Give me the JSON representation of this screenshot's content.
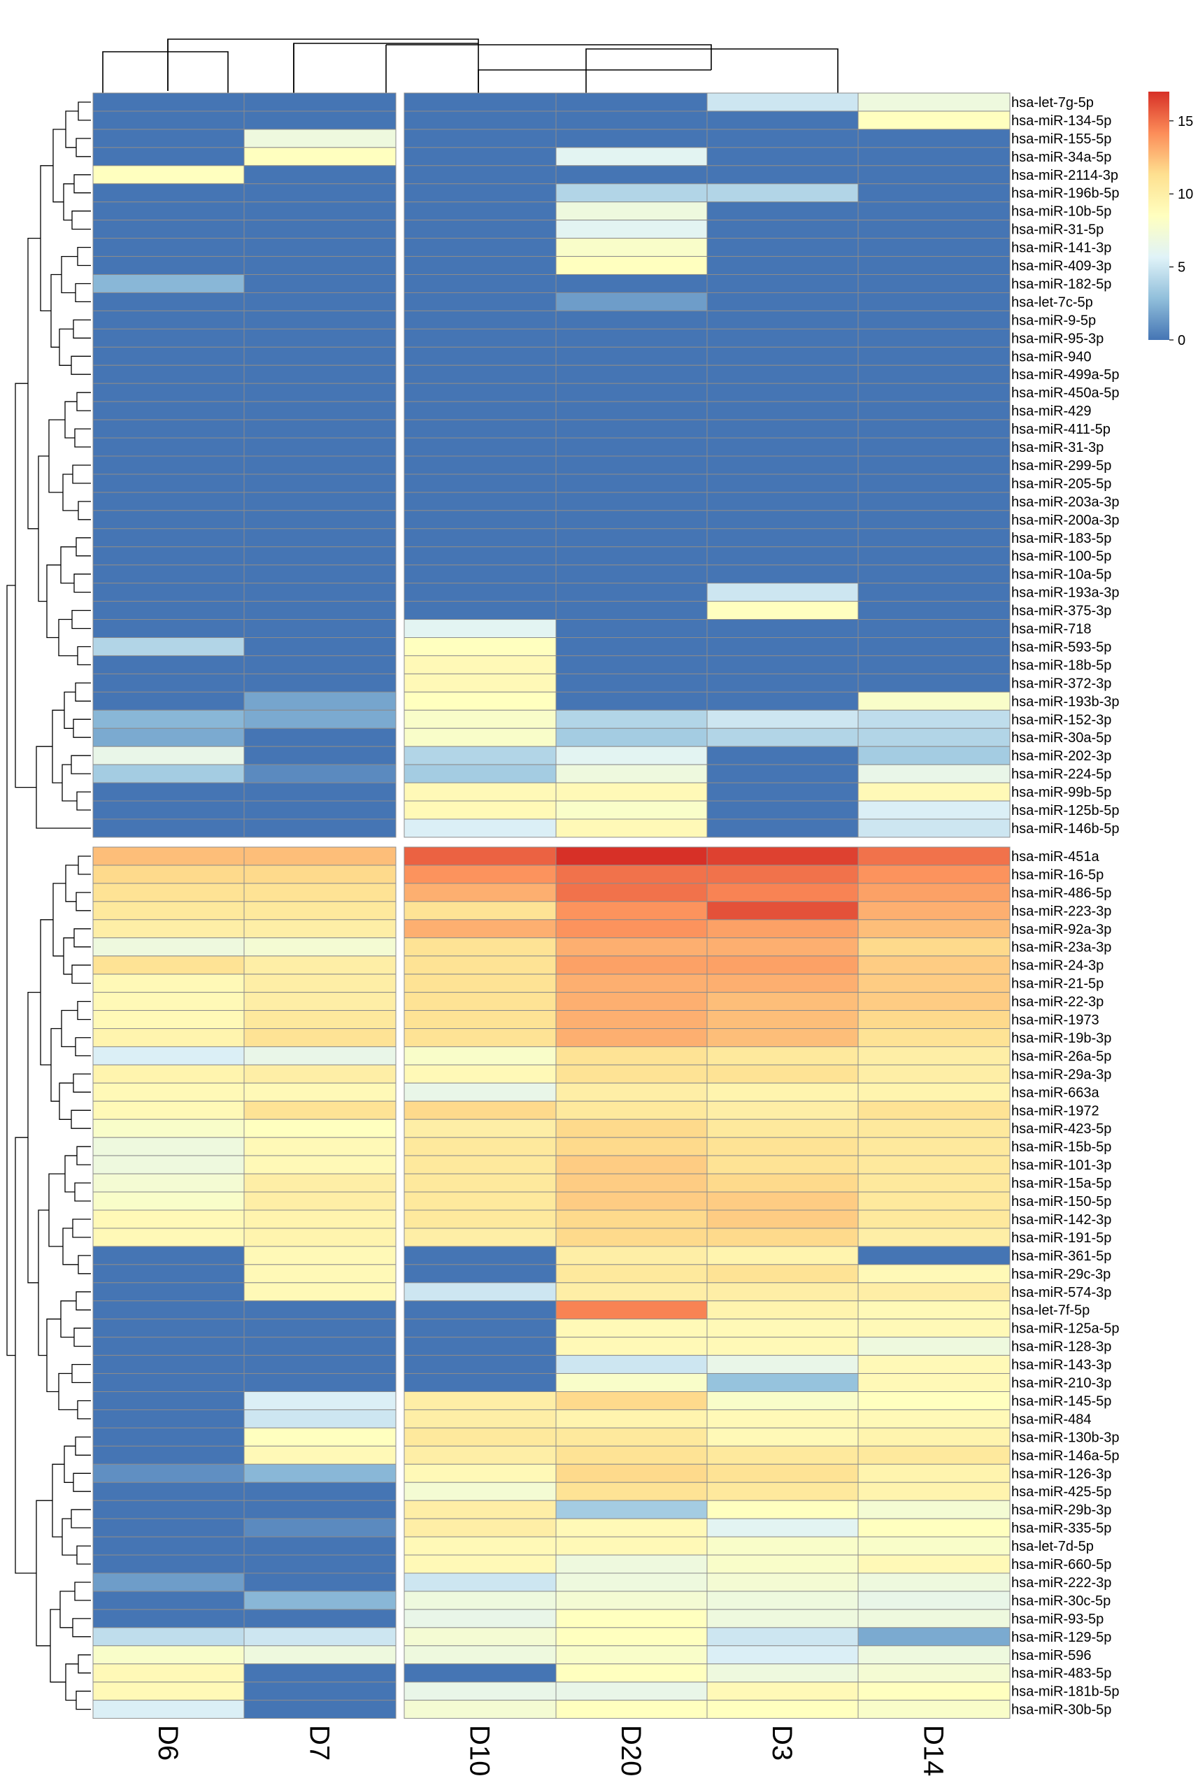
{
  "chart_data": {
    "type": "heatmap",
    "title": "",
    "columns": [
      "D6",
      "D7",
      "D10",
      "D20",
      "D3",
      "D14"
    ],
    "color_scale": {
      "min": 0,
      "max": 17,
      "stops": [
        {
          "value": 0,
          "color": "#4575b4"
        },
        {
          "value": 2.8,
          "color": "#91bfdb"
        },
        {
          "value": 5.7,
          "color": "#e0f3f8"
        },
        {
          "value": 8.5,
          "color": "#ffffbf"
        },
        {
          "value": 11.3,
          "color": "#fee090"
        },
        {
          "value": 14.2,
          "color": "#fc8d59"
        },
        {
          "value": 17,
          "color": "#d73027"
        }
      ]
    },
    "legend": {
      "position": "top-right",
      "ticks": [
        0,
        5,
        10,
        15
      ]
    },
    "row_clusters": [
      {
        "name": "upper",
        "rows": [
          {
            "label": "hsa-let-7g-5p",
            "values": [
              0,
              0,
              0,
              0,
              5,
              7
            ]
          },
          {
            "label": "hsa-miR-134-5p",
            "values": [
              0,
              0,
              0,
              0,
              0,
              8.5
            ]
          },
          {
            "label": "hsa-miR-155-5p",
            "values": [
              0,
              7,
              0,
              0,
              0,
              0
            ]
          },
          {
            "label": "hsa-miR-34a-5p",
            "values": [
              0,
              8.5,
              0,
              6,
              0,
              0
            ]
          },
          {
            "label": "hsa-miR-2114-3p",
            "values": [
              8.5,
              0,
              0,
              0,
              0,
              0
            ]
          },
          {
            "label": "hsa-miR-196b-5p",
            "values": [
              0,
              0,
              0,
              4,
              4,
              0
            ]
          },
          {
            "label": "hsa-miR-10b-5p",
            "values": [
              0,
              0,
              0,
              7,
              0,
              0
            ]
          },
          {
            "label": "hsa-miR-31-5p",
            "values": [
              0,
              0,
              0,
              6,
              0,
              0
            ]
          },
          {
            "label": "hsa-miR-141-3p",
            "values": [
              0,
              0,
              0,
              8,
              0,
              0
            ]
          },
          {
            "label": "hsa-miR-409-3p",
            "values": [
              0,
              0,
              0,
              8.5,
              0,
              0
            ]
          },
          {
            "label": "hsa-miR-182-5p",
            "values": [
              2.5,
              0,
              0,
              0,
              0,
              0
            ]
          },
          {
            "label": "hsa-let-7c-5p",
            "values": [
              0,
              0,
              0,
              1.5,
              0,
              0
            ]
          },
          {
            "label": "hsa-miR-9-5p",
            "values": [
              0,
              0,
              0,
              0,
              0,
              0
            ]
          },
          {
            "label": "hsa-miR-95-3p",
            "values": [
              0,
              0,
              0,
              0,
              0,
              0
            ]
          },
          {
            "label": "hsa-miR-940",
            "values": [
              0,
              0,
              0,
              0,
              0,
              0
            ]
          },
          {
            "label": "hsa-miR-499a-5p",
            "values": [
              0,
              0,
              0,
              0,
              0,
              0
            ]
          },
          {
            "label": "hsa-miR-450a-5p",
            "values": [
              0,
              0,
              0,
              0,
              0,
              0
            ]
          },
          {
            "label": "hsa-miR-429",
            "values": [
              0,
              0,
              0,
              0,
              0,
              0
            ]
          },
          {
            "label": "hsa-miR-411-5p",
            "values": [
              0,
              0,
              0,
              0,
              0,
              0
            ]
          },
          {
            "label": "hsa-miR-31-3p",
            "values": [
              0,
              0,
              0,
              0,
              0,
              0
            ]
          },
          {
            "label": "hsa-miR-299-5p",
            "values": [
              0,
              0,
              0,
              0,
              0,
              0
            ]
          },
          {
            "label": "hsa-miR-205-5p",
            "values": [
              0,
              0,
              0,
              0,
              0,
              0
            ]
          },
          {
            "label": "hsa-miR-203a-3p",
            "values": [
              0,
              0,
              0,
              0,
              0,
              0
            ]
          },
          {
            "label": "hsa-miR-200a-3p",
            "values": [
              0,
              0,
              0,
              0,
              0,
              0
            ]
          },
          {
            "label": "hsa-miR-183-5p",
            "values": [
              0,
              0,
              0,
              0,
              0,
              0
            ]
          },
          {
            "label": "hsa-miR-100-5p",
            "values": [
              0,
              0,
              0,
              0,
              0,
              0
            ]
          },
          {
            "label": "hsa-miR-10a-5p",
            "values": [
              0,
              0,
              0,
              0,
              0,
              0
            ]
          },
          {
            "label": "hsa-miR-193a-3p",
            "values": [
              0,
              0,
              0,
              0,
              5,
              0
            ]
          },
          {
            "label": "hsa-miR-375-3p",
            "values": [
              0,
              0,
              0,
              0,
              8.5,
              0
            ]
          },
          {
            "label": "hsa-miR-718",
            "values": [
              0,
              0,
              6,
              0,
              0,
              0
            ]
          },
          {
            "label": "hsa-miR-593-5p",
            "values": [
              4,
              0,
              8.5,
              0,
              0,
              0
            ]
          },
          {
            "label": "hsa-miR-18b-5p",
            "values": [
              0,
              0,
              9,
              0,
              0,
              0
            ]
          },
          {
            "label": "hsa-miR-372-3p",
            "values": [
              0,
              0,
              9,
              0,
              0,
              0
            ]
          },
          {
            "label": "hsa-miR-193b-3p",
            "values": [
              0,
              1.8,
              8.5,
              0,
              0,
              8
            ]
          },
          {
            "label": "hsa-miR-152-3p",
            "values": [
              2.5,
              2,
              8,
              4,
              5,
              4.5
            ]
          },
          {
            "label": "hsa-miR-30a-5p",
            "values": [
              2,
              0,
              8,
              3.5,
              4,
              4
            ]
          },
          {
            "label": "hsa-miR-202-3p",
            "values": [
              6.5,
              0,
              4,
              6,
              0,
              3.5
            ]
          },
          {
            "label": "hsa-miR-224-5p",
            "values": [
              3.5,
              0.8,
              3.5,
              7,
              0,
              6.5
            ]
          },
          {
            "label": "hsa-miR-99b-5p",
            "values": [
              0,
              0,
              9,
              9,
              0,
              9
            ]
          },
          {
            "label": "hsa-miR-125b-5p",
            "values": [
              0,
              0,
              9,
              8,
              0,
              5.5
            ]
          },
          {
            "label": "hsa-miR-146b-5p",
            "values": [
              0,
              0,
              5.5,
              9,
              0,
              5
            ]
          }
        ]
      },
      {
        "name": "lower",
        "rows": [
          {
            "label": "hsa-miR-451a",
            "values": [
              12.5,
              12.5,
              15.5,
              17,
              16.5,
              15
            ]
          },
          {
            "label": "hsa-miR-16-5p",
            "values": [
              11.5,
              11.5,
              14,
              15,
              15,
              14
            ]
          },
          {
            "label": "hsa-miR-486-5p",
            "values": [
              11,
              11,
              13,
              15,
              14.5,
              13.5
            ]
          },
          {
            "label": "hsa-miR-223-3p",
            "values": [
              10.5,
              10.5,
              11,
              14,
              16,
              13
            ]
          },
          {
            "label": "hsa-miR-92a-3p",
            "values": [
              10,
              10,
              13,
              14,
              13.5,
              12.5
            ]
          },
          {
            "label": "hsa-miR-23a-3p",
            "values": [
              7,
              7.5,
              11,
              13,
              13,
              11.5
            ]
          },
          {
            "label": "hsa-miR-24-3p",
            "values": [
              11,
              10,
              11,
              13.5,
              13.5,
              12
            ]
          },
          {
            "label": "hsa-miR-21-5p",
            "values": [
              9,
              10,
              11,
              13,
              13,
              12
            ]
          },
          {
            "label": "hsa-miR-22-3p",
            "values": [
              9,
              10,
              11,
              13,
              12.5,
              12
            ]
          },
          {
            "label": "hsa-miR-1973",
            "values": [
              9,
              10.5,
              11,
              13,
              12.5,
              11.5
            ]
          },
          {
            "label": "hsa-miR-19b-3p",
            "values": [
              9.5,
              11,
              11,
              13,
              12.5,
              11
            ]
          },
          {
            "label": "hsa-miR-26a-5p",
            "values": [
              5.5,
              6.5,
              8,
              11,
              10.5,
              10
            ]
          },
          {
            "label": "hsa-miR-29a-3p",
            "values": [
              9.5,
              10,
              9,
              11,
              11,
              10
            ]
          },
          {
            "label": "hsa-miR-663a",
            "values": [
              9,
              9,
              6.5,
              10,
              9.5,
              9.5
            ]
          },
          {
            "label": "hsa-miR-1972",
            "values": [
              9,
              11,
              11.5,
              10.5,
              10,
              11
            ]
          },
          {
            "label": "hsa-miR-423-5p",
            "values": [
              8,
              8.5,
              10,
              11.5,
              10.5,
              10.5
            ]
          },
          {
            "label": "hsa-miR-15b-5p",
            "values": [
              7,
              9,
              10.5,
              11.5,
              11,
              10.5
            ]
          },
          {
            "label": "hsa-miR-101-3p",
            "values": [
              7,
              9,
              10.5,
              12,
              11,
              10.5
            ]
          },
          {
            "label": "hsa-miR-15a-5p",
            "values": [
              7.5,
              10,
              10.5,
              12,
              11.5,
              10.5
            ]
          },
          {
            "label": "hsa-miR-150-5p",
            "values": [
              8,
              10,
              10.5,
              12,
              12,
              10.5
            ]
          },
          {
            "label": "hsa-miR-142-3p",
            "values": [
              9,
              9.5,
              10.5,
              11.5,
              12,
              10.5
            ]
          },
          {
            "label": "hsa-miR-191-5p",
            "values": [
              9,
              9.5,
              10,
              11.5,
              11.5,
              10
            ]
          },
          {
            "label": "hsa-miR-361-5p",
            "values": [
              0,
              9,
              0,
              10,
              9.5,
              0
            ]
          },
          {
            "label": "hsa-miR-29c-3p",
            "values": [
              0,
              9,
              0,
              10.5,
              11,
              9
            ]
          },
          {
            "label": "hsa-miR-574-3p",
            "values": [
              0,
              9,
              5,
              10,
              10,
              10
            ]
          },
          {
            "label": "hsa-let-7f-5p",
            "values": [
              0,
              0,
              0,
              14.5,
              9.5,
              9
            ]
          },
          {
            "label": "hsa-miR-125a-5p",
            "values": [
              0,
              0,
              0,
              9,
              9,
              9
            ]
          },
          {
            "label": "hsa-miR-128-3p",
            "values": [
              0,
              0,
              0,
              9,
              9,
              7
            ]
          },
          {
            "label": "hsa-miR-143-3p",
            "values": [
              0,
              0,
              0,
              5,
              6.5,
              9
            ]
          },
          {
            "label": "hsa-miR-210-3p",
            "values": [
              0,
              0,
              0,
              8,
              3,
              9
            ]
          },
          {
            "label": "hsa-miR-145-5p",
            "values": [
              0,
              5.5,
              10,
              11.5,
              8,
              8.5
            ]
          },
          {
            "label": "hsa-miR-484",
            "values": [
              0,
              5,
              10,
              9.5,
              9,
              9
            ]
          },
          {
            "label": "hsa-miR-130b-3p",
            "values": [
              0,
              8.5,
              10.5,
              10.5,
              9,
              9.5
            ]
          },
          {
            "label": "hsa-miR-146a-5p",
            "values": [
              0,
              9,
              10,
              11,
              10.5,
              10.5
            ]
          },
          {
            "label": "hsa-miR-126-3p",
            "values": [
              1,
              2.5,
              9,
              11.5,
              11,
              9.5
            ]
          },
          {
            "label": "hsa-miR-425-5p",
            "values": [
              0,
              0,
              7.5,
              11,
              10.5,
              9.5
            ]
          },
          {
            "label": "hsa-miR-29b-3p",
            "values": [
              0,
              0,
              10,
              3.5,
              8.5,
              7.5
            ]
          },
          {
            "label": "hsa-miR-335-5p",
            "values": [
              0,
              0.8,
              10,
              9,
              6,
              8.5
            ]
          },
          {
            "label": "hsa-let-7d-5p",
            "values": [
              0,
              0,
              9,
              9,
              8,
              8
            ]
          },
          {
            "label": "hsa-miR-660-5p",
            "values": [
              0,
              0,
              9,
              7,
              8,
              9
            ]
          },
          {
            "label": "hsa-miR-222-3p",
            "values": [
              1.5,
              0,
              5,
              7,
              7.5,
              7
            ]
          },
          {
            "label": "hsa-miR-30c-5p",
            "values": [
              0,
              2.5,
              7,
              7.5,
              7,
              6.5
            ]
          },
          {
            "label": "hsa-miR-93-5p",
            "values": [
              0,
              0,
              6.5,
              8.5,
              7,
              7
            ]
          },
          {
            "label": "hsa-miR-129-5p",
            "values": [
              4.5,
              5,
              7.5,
              8.5,
              5,
              2
            ]
          },
          {
            "label": "hsa-miR-596",
            "values": [
              8,
              7,
              7,
              8,
              5.5,
              7
            ]
          },
          {
            "label": "hsa-miR-483-5p",
            "values": [
              9,
              0,
              0,
              8.5,
              7,
              7.5
            ]
          },
          {
            "label": "hsa-miR-181b-5p",
            "values": [
              9,
              0,
              6.5,
              6.5,
              9,
              8.5
            ]
          },
          {
            "label": "hsa-miR-30b-5p",
            "values": [
              5.5,
              0,
              7.5,
              8.5,
              8.5,
              8
            ]
          }
        ]
      }
    ]
  }
}
